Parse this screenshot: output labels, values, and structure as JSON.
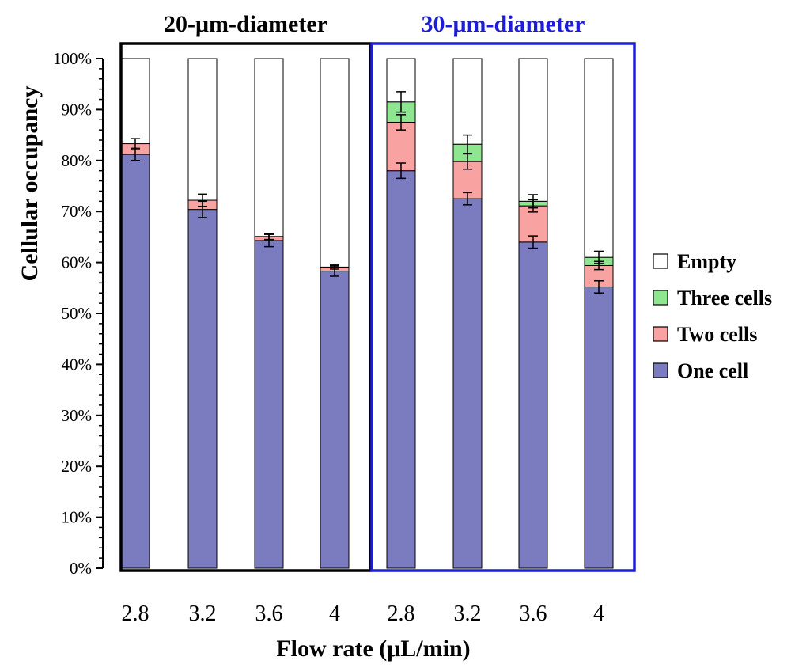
{
  "chart_data": {
    "type": "bar",
    "stacked": true,
    "ylabel": "Cellular occupancy",
    "xlabel": "Flow rate (μL/min)",
    "ylim": [
      0,
      100
    ],
    "y_ticks": [
      0,
      10,
      20,
      30,
      40,
      50,
      60,
      70,
      80,
      90,
      100
    ],
    "y_tick_suffix": "%",
    "legend_position": "right",
    "groups": [
      {
        "name": "20-μm-diameter",
        "frame_color": "#000000",
        "title_color": "#000000",
        "categories": [
          "2.8",
          "3.2",
          "3.6",
          "4"
        ],
        "series": [
          {
            "name": "One cell",
            "color": "#7b7bbf",
            "values": [
              81.2,
              70.4,
              64.3,
              58.3
            ],
            "errors": [
              1.2,
              1.6,
              1.2,
              1.0
            ]
          },
          {
            "name": "Two cells",
            "color": "#f9a2a2",
            "values": [
              2.1,
              1.8,
              0.8,
              0.8
            ],
            "errors": [
              1.0,
              1.2,
              0.6,
              0.4
            ]
          },
          {
            "name": "Three cells",
            "color": "#8fe690",
            "values": [
              0,
              0,
              0,
              0
            ],
            "errors": [
              0,
              0,
              0,
              0
            ]
          },
          {
            "name": "Empty",
            "color": "#ffffff",
            "values": [
              16.7,
              27.8,
              34.9,
              40.9
            ],
            "errors": [
              0,
              0,
              0,
              0
            ]
          }
        ]
      },
      {
        "name": "30-μm-diameter",
        "frame_color": "#1d1dd6",
        "title_color": "#1d1dd6",
        "categories": [
          "2.8",
          "3.2",
          "3.6",
          "4"
        ],
        "series": [
          {
            "name": "One cell",
            "color": "#7b7bbf",
            "values": [
              78.0,
              72.5,
              64.0,
              55.2
            ],
            "errors": [
              1.5,
              1.2,
              1.2,
              1.2
            ]
          },
          {
            "name": "Two cells",
            "color": "#f9a2a2",
            "values": [
              9.5,
              7.3,
              7.1,
              4.2
            ],
            "errors": [
              1.5,
              1.5,
              1.2,
              0.8
            ]
          },
          {
            "name": "Three cells",
            "color": "#8fe690",
            "values": [
              4.0,
              3.4,
              0.9,
              1.6
            ],
            "errors": [
              2.0,
              1.8,
              1.3,
              1.2
            ]
          },
          {
            "name": "Empty",
            "color": "#ffffff",
            "values": [
              8.5,
              16.8,
              28.0,
              39.0
            ],
            "errors": [
              0,
              0,
              0,
              0
            ]
          }
        ]
      }
    ],
    "legend": [
      {
        "name": "Empty",
        "color": "#ffffff"
      },
      {
        "name": "Three cells",
        "color": "#8fe690"
      },
      {
        "name": "Two cells",
        "color": "#f9a2a2"
      },
      {
        "name": "One cell",
        "color": "#7b7bbf"
      }
    ]
  }
}
